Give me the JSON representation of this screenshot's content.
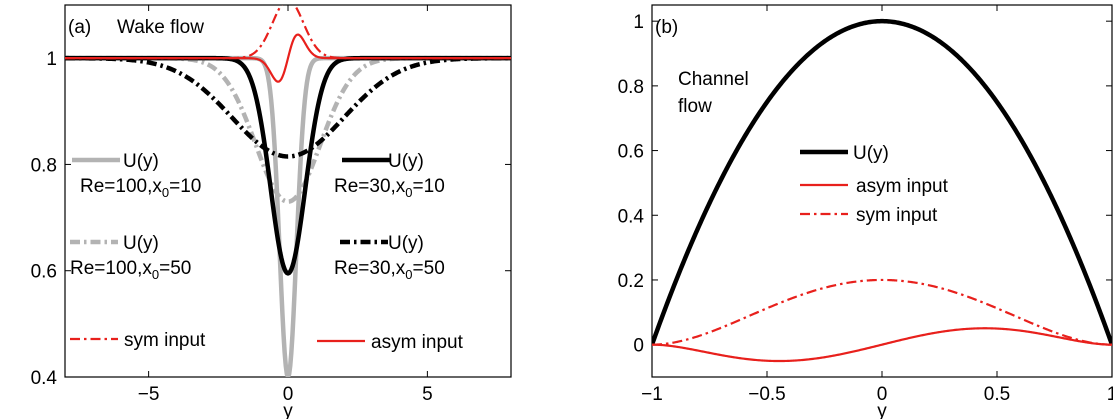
{
  "chart_data": [
    {
      "panel": "(a)",
      "type": "line",
      "title": "Wake flow",
      "xlabel": "y",
      "ylabel": "",
      "xlim": [
        -8,
        8
      ],
      "ylim": [
        0.4,
        1.1
      ],
      "xticks": [
        -5,
        0,
        5
      ],
      "xtick_labels": [
        "−5",
        "0",
        "5"
      ],
      "yticks": [
        0.4,
        0.6,
        0.8,
        1.0
      ],
      "ytick_labels": [
        "0.4",
        "0.6",
        "0.8",
        "1"
      ],
      "grid": false,
      "series": [
        {
          "name": "U(y)",
          "label_line2": "Re=100,x",
          "sub": "0",
          "label_tail": "=10",
          "color": "#b3b3b3",
          "style": "solid",
          "width": 4.5,
          "kind": "wake",
          "min": 0.4,
          "sigma": 0.3
        },
        {
          "name": "U(y)",
          "label_line2": "Re=100,x",
          "sub": "0",
          "label_tail": "=50",
          "color": "#b3b3b3",
          "style": "dashdot",
          "width": 4.5,
          "kind": "wake",
          "min": 0.73,
          "sigma": 1.15
        },
        {
          "name": "U(y)",
          "label_line2": "Re=30,x",
          "sub": "0",
          "label_tail": "=10",
          "color": "#000000",
          "style": "solid",
          "width": 4.5,
          "kind": "wake",
          "min": 0.595,
          "sigma": 0.62
        },
        {
          "name": "U(y)",
          "label_line2": "Re=30,x",
          "sub": "0",
          "label_tail": "=50",
          "color": "#000000",
          "style": "dashdot",
          "width": 4.5,
          "kind": "wake",
          "min": 0.815,
          "sigma": 2.0
        },
        {
          "name": "sym input",
          "color": "#e8201c",
          "style": "dashdot",
          "width": 2.2,
          "kind": "sym",
          "amp": 0.11,
          "sigma": 0.55,
          "base": 1.0
        },
        {
          "name": "asym input",
          "color": "#e8201c",
          "style": "solid",
          "width": 2.2,
          "kind": "asym",
          "amp": 0.045,
          "sigma": 0.5,
          "base": 1.0
        }
      ]
    },
    {
      "panel": "(b)",
      "type": "line",
      "title": "Channel flow",
      "title_lines": [
        "Channel",
        "flow"
      ],
      "xlabel": "y",
      "ylabel": "",
      "xlim": [
        -1,
        1
      ],
      "ylim": [
        -0.1,
        1.05
      ],
      "xticks": [
        -1,
        -0.5,
        0,
        0.5,
        1
      ],
      "xtick_labels": [
        "−1",
        "−0.5",
        "0",
        "0.5",
        "1"
      ],
      "yticks": [
        0,
        0.2,
        0.4,
        0.6,
        0.8,
        1
      ],
      "ytick_labels": [
        "0",
        "0.2",
        "0.4",
        "0.6",
        "0.8",
        "1"
      ],
      "grid": false,
      "series": [
        {
          "name": "U(y)",
          "color": "#000000",
          "style": "solid",
          "width": 4.5,
          "kind": "poiseuille"
        },
        {
          "name": "asym input",
          "color": "#e8201c",
          "style": "solid",
          "width": 2.2,
          "kind": "chan_asym",
          "peak": 0.058
        },
        {
          "name": "sym input",
          "color": "#e8201c",
          "style": "dashdot",
          "width": 2.2,
          "kind": "chan_sym",
          "peak": 0.2
        }
      ]
    }
  ]
}
